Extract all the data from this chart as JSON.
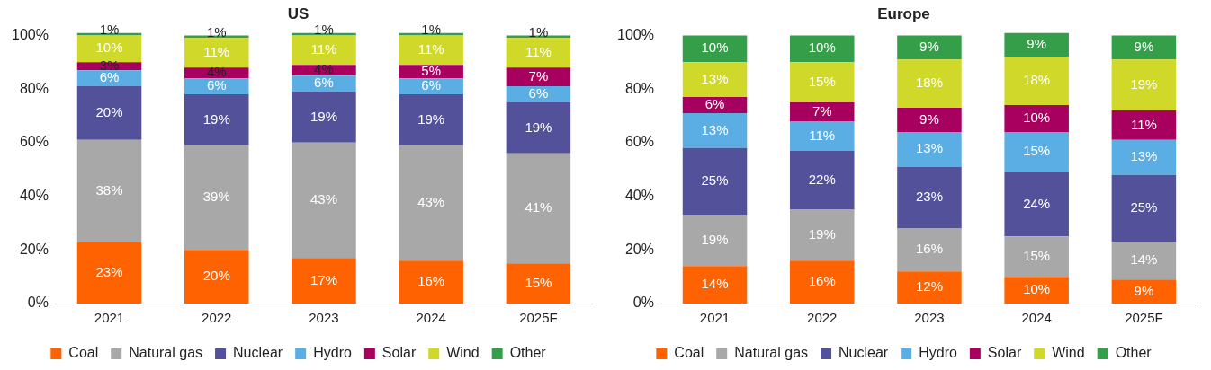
{
  "chart_data": [
    {
      "type": "bar",
      "title": "US",
      "stacked": true,
      "legend": "bottom",
      "grid": false,
      "categories": [
        "2021",
        "2022",
        "2023",
        "2024",
        "2025F"
      ],
      "ylim": [
        0,
        101
      ],
      "yticks": [
        {
          "value": 0,
          "label": "0%"
        },
        {
          "value": 20,
          "label": "20%"
        },
        {
          "value": 40,
          "label": "40%"
        },
        {
          "value": 60,
          "label": "60%"
        },
        {
          "value": 80,
          "label": "80%"
        },
        {
          "value": 100,
          "label": "100%"
        }
      ],
      "series": [
        {
          "name": "Coal",
          "color": "#ff6200",
          "values": [
            23,
            20,
            17,
            16,
            15
          ],
          "value_labels": [
            "23%",
            "20%",
            "17%",
            "16%",
            "15%"
          ]
        },
        {
          "name": "Natural gas",
          "color": "#a8a8a8",
          "values": [
            38,
            39,
            43,
            43,
            41
          ],
          "value_labels": [
            "38%",
            "39%",
            "43%",
            "43%",
            "41%"
          ]
        },
        {
          "name": "Nuclear",
          "color": "#525199",
          "values": [
            20,
            19,
            19,
            19,
            19
          ],
          "value_labels": [
            "20%",
            "19%",
            "19%",
            "19%",
            "19%"
          ]
        },
        {
          "name": "Hydro",
          "color": "#5aaee3",
          "values": [
            6,
            6,
            6,
            6,
            6
          ],
          "value_labels": [
            "6%",
            "6%",
            "6%",
            "6%",
            "6%"
          ]
        },
        {
          "name": "Solar",
          "color": "#a8005f",
          "values": [
            3,
            4,
            4,
            5,
            7
          ],
          "value_labels": [
            "3%",
            "4%",
            "4%",
            "5%",
            "7%"
          ]
        },
        {
          "name": "Wind",
          "color": "#d0d92a",
          "values": [
            10,
            11,
            11,
            11,
            11
          ],
          "value_labels": [
            "10%",
            "11%",
            "11%",
            "11%",
            "11%"
          ]
        },
        {
          "name": "Other",
          "color": "#349e49",
          "values": [
            1,
            1,
            1,
            1,
            1
          ],
          "value_labels": [
            "1%",
            "1%",
            "1%",
            "1%",
            "1%"
          ]
        }
      ]
    },
    {
      "type": "bar",
      "title": "Europe",
      "stacked": true,
      "legend": "bottom",
      "grid": false,
      "categories": [
        "2021",
        "2022",
        "2023",
        "2024",
        "2025F"
      ],
      "ylim": [
        0,
        101
      ],
      "yticks": [
        {
          "value": 0,
          "label": "0%"
        },
        {
          "value": 20,
          "label": "20%"
        },
        {
          "value": 40,
          "label": "40%"
        },
        {
          "value": 60,
          "label": "60%"
        },
        {
          "value": 80,
          "label": "80%"
        },
        {
          "value": 100,
          "label": "100%"
        }
      ],
      "series": [
        {
          "name": "Coal",
          "color": "#ff6200",
          "values": [
            14,
            16,
            12,
            10,
            9
          ],
          "value_labels": [
            "14%",
            "16%",
            "12%",
            "10%",
            "9%"
          ]
        },
        {
          "name": "Natural gas",
          "color": "#a8a8a8",
          "values": [
            19,
            19,
            16,
            15,
            14
          ],
          "value_labels": [
            "19%",
            "19%",
            "16%",
            "15%",
            "14%"
          ]
        },
        {
          "name": "Nuclear",
          "color": "#525199",
          "values": [
            25,
            22,
            23,
            24,
            25
          ],
          "value_labels": [
            "25%",
            "22%",
            "23%",
            "24%",
            "25%"
          ]
        },
        {
          "name": "Hydro",
          "color": "#5aaee3",
          "values": [
            13,
            11,
            13,
            15,
            13
          ],
          "value_labels": [
            "13%",
            "11%",
            "13%",
            "15%",
            "13%"
          ]
        },
        {
          "name": "Solar",
          "color": "#a8005f",
          "values": [
            6,
            7,
            9,
            10,
            11
          ],
          "value_labels": [
            "6%",
            "7%",
            "9%",
            "10%",
            "11%"
          ]
        },
        {
          "name": "Wind",
          "color": "#d0d92a",
          "values": [
            13,
            15,
            18,
            18,
            19
          ],
          "value_labels": [
            "13%",
            "15%",
            "18%",
            "18%",
            "19%"
          ]
        },
        {
          "name": "Other",
          "color": "#349e49",
          "values": [
            10,
            10,
            9,
            9,
            9
          ],
          "value_labels": [
            "10%",
            "10%",
            "9%",
            "9%",
            "9%"
          ]
        }
      ]
    }
  ]
}
